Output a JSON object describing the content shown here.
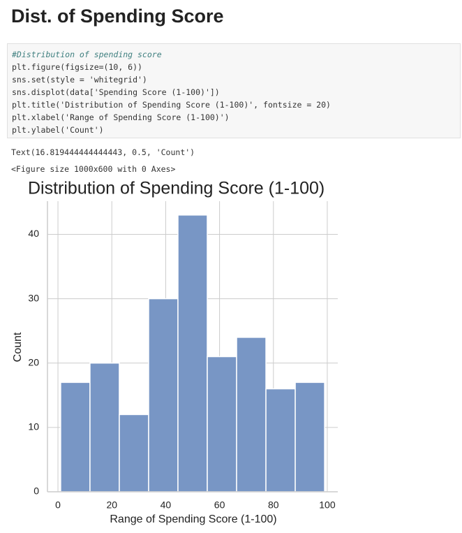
{
  "header": {
    "title": "Dist. of Spending Score"
  },
  "code": {
    "lines": [
      "#Distribution of spending score",
      "plt.figure(figsize=(10, 6))",
      "sns.set(style = 'whitegrid')",
      "sns.displot(data['Spending Score (1-100)'])",
      "plt.title('Distribution of Spending Score (1-100)', fontsize = 20)",
      "plt.xlabel('Range of Spending Score (1-100)')",
      "plt.ylabel('Count')"
    ]
  },
  "outputs": [
    "Text(16.819444444444443, 0.5, 'Count')",
    "<Figure size 1000x600 with 0 Axes>"
  ],
  "chart_data": {
    "type": "histogram",
    "title": "Distribution of Spending Score (1-100)",
    "x_label": "Range of Spending Score (1-100)",
    "y_label": "Count",
    "bins": [
      1,
      11.889,
      22.778,
      33.667,
      44.556,
      55.444,
      66.333,
      77.222,
      88.111,
      99
    ],
    "values": [
      17,
      20,
      12,
      30,
      43,
      21,
      24,
      16,
      17
    ],
    "color": "#7896c5",
    "xlim": [
      -3.9,
      103.9
    ],
    "xticks": [
      0,
      20,
      40,
      60,
      80,
      100
    ],
    "ylim": [
      0,
      45.15
    ],
    "yticks": [
      0,
      10,
      20,
      30,
      40
    ],
    "grid": true
  }
}
